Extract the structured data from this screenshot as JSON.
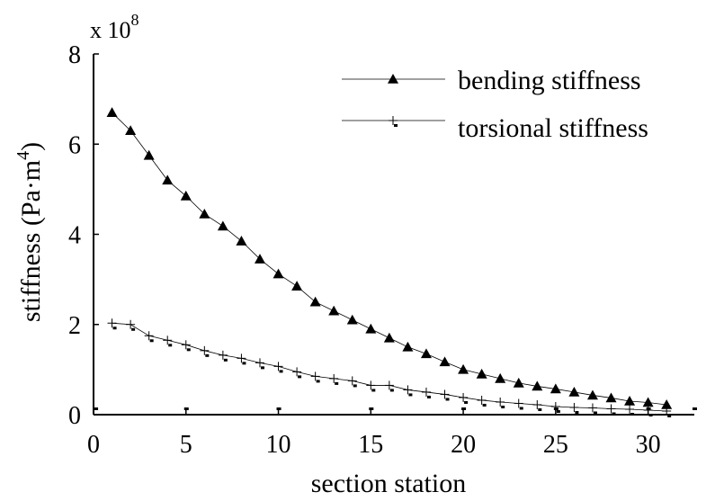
{
  "chart_data": {
    "type": "line",
    "xlabel": "section station",
    "ylabel": "stiffness (Pa·m",
    "ylabel_exponent": "4",
    "ylabel_close": ")",
    "y_multiplier_base": "x 10",
    "y_multiplier_exponent": "8",
    "xlim": [
      0,
      32.5
    ],
    "ylim": [
      0,
      8
    ],
    "x_ticks": [
      0,
      5,
      10,
      15,
      20,
      25,
      30
    ],
    "y_ticks": [
      0,
      2,
      4,
      6,
      8
    ],
    "grid": false,
    "legend_position": "top-right",
    "series": [
      {
        "name": "bending stiffness",
        "marker": "triangle",
        "x": [
          1,
          2,
          3,
          4,
          5,
          6,
          7,
          8,
          9,
          10,
          11,
          12,
          13,
          14,
          15,
          16,
          17,
          18,
          19,
          20,
          21,
          22,
          23,
          24,
          25,
          26,
          27,
          28,
          29,
          30,
          31
        ],
        "values": [
          6.7,
          6.3,
          5.75,
          5.2,
          4.85,
          4.45,
          4.18,
          3.85,
          3.45,
          3.12,
          2.85,
          2.5,
          2.3,
          2.1,
          1.9,
          1.7,
          1.5,
          1.35,
          1.17,
          1.0,
          0.9,
          0.8,
          0.7,
          0.63,
          0.57,
          0.5,
          0.43,
          0.37,
          0.3,
          0.27,
          0.22
        ]
      },
      {
        "name": "torsional stiffness",
        "marker": "plus",
        "x": [
          1,
          2,
          3,
          4,
          5,
          6,
          7,
          8,
          9,
          10,
          11,
          12,
          13,
          14,
          15,
          16,
          17,
          18,
          19,
          20,
          21,
          22,
          23,
          24,
          25,
          26,
          27,
          28,
          29,
          30,
          31
        ],
        "values": [
          2.03,
          2.0,
          1.75,
          1.65,
          1.55,
          1.42,
          1.32,
          1.25,
          1.15,
          1.07,
          0.95,
          0.85,
          0.8,
          0.75,
          0.65,
          0.65,
          0.55,
          0.5,
          0.45,
          0.38,
          0.32,
          0.28,
          0.25,
          0.22,
          0.18,
          0.16,
          0.15,
          0.13,
          0.12,
          0.1,
          0.08
        ]
      }
    ]
  }
}
